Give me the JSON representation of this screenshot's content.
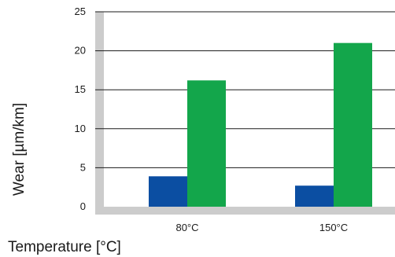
{
  "chart_data": {
    "type": "bar",
    "title": "",
    "xlabel": "Temperature [°C]",
    "ylabel": "Wear [µm/km]",
    "categories": [
      "80°C",
      "150°C"
    ],
    "series": [
      {
        "values": [
          3.9,
          2.7
        ],
        "color": "#0b4ea2"
      },
      {
        "values": [
          16.2,
          21.0
        ],
        "color": "#13a64b"
      }
    ],
    "ylim": [
      0,
      25
    ],
    "yticks": [
      0,
      5,
      10,
      15,
      20,
      25
    ],
    "grid": true,
    "legend": "none",
    "background": "#ffffff",
    "axis_color": "#cccccc",
    "gridline_color": "#1a1a1a"
  }
}
